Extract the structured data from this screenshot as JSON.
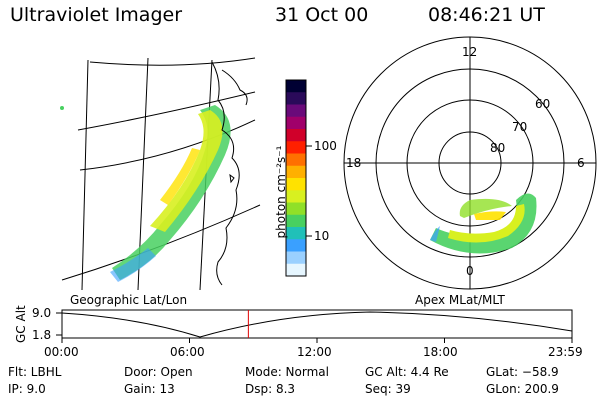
{
  "header": {
    "title": "Ultraviolet Imager",
    "date": "31 Oct 00",
    "time": "08:46:21 UT"
  },
  "colorbar": {
    "unit_label": "photon cm⁻²s⁻¹",
    "ticks": [
      "100",
      "10"
    ],
    "colors": [
      "#000033",
      "#2a0a5a",
      "#6a0a7a",
      "#a0006a",
      "#d0002a",
      "#ff2000",
      "#ff7000",
      "#ffb000",
      "#ffe200",
      "#d8f020",
      "#90e028",
      "#48d060",
      "#20c0b8",
      "#3aa0ff",
      "#9ad0ff",
      "#e6f6ff"
    ]
  },
  "geo_panel": {
    "caption": "Geographic Lat/Lon"
  },
  "polar_panel": {
    "caption": "Apex MLat/MLT",
    "mlt_labels": [
      "12",
      "18",
      "6",
      "0"
    ],
    "lat_labels": [
      "60",
      "70",
      "80"
    ]
  },
  "orbit_plot": {
    "ylabel": "GC Alt",
    "ymax": "9.0",
    "ymin": "1.8",
    "xticks": [
      "00:00",
      "06:00",
      "12:00",
      "18:00",
      "23:59"
    ],
    "current_time_marker_hours": 8.77
  },
  "status": {
    "flt": "Flt: LBHL",
    "ip": "IP:  9.0",
    "door": "Door: Open",
    "gain": "Gain: 13",
    "mode": "Mode: Normal",
    "dsp": "Dsp:    8.3",
    "gcalt": "GC Alt: 4.4 Re",
    "seq": "Seq: 39",
    "glat": "GLat: −58.9",
    "glon": "GLon: 200.9"
  }
}
